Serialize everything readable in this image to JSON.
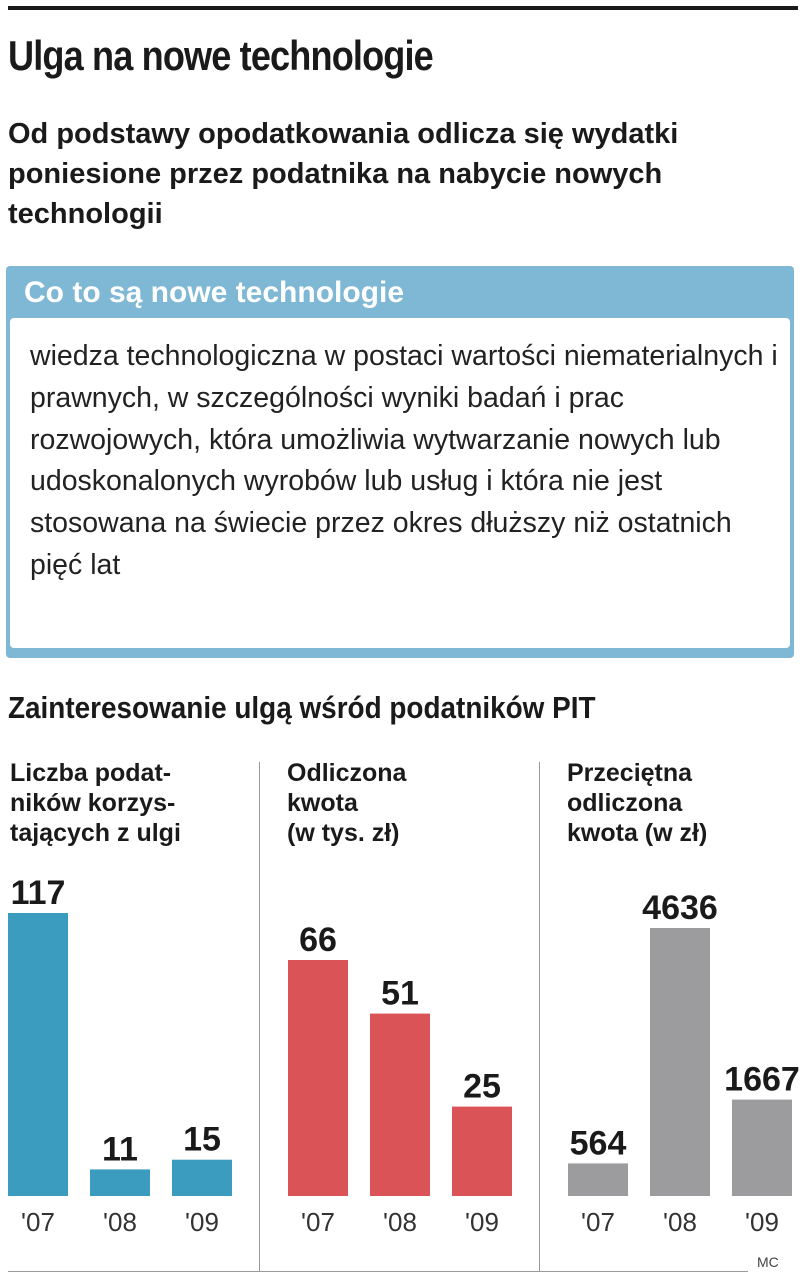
{
  "header": {
    "title": "Ulga na nowe technologie",
    "subtitle": "Od podstawy opodatkowania odlicza się wydatki poniesione przez podatnika na nabycie nowych technologii"
  },
  "info_box": {
    "title": "Co to są nowe technologie",
    "body": "wiedza technologiczna w postaci wartości niematerialnych i prawnych, w szczególności wyniki badań i prac rozwojowych, która umożliwia wytwarzanie nowych lub udoskonalonych wyrobów lub usług i która nie jest stosowana na świecie przez okres dłuższy niż ostatnich pięć lat"
  },
  "section_title": "Zainteresowanie ulgą wśród podatników PIT",
  "credit": "MC",
  "colors": {
    "blue": "#3b9cbf",
    "red": "#d95357",
    "gray": "#9c9c9e",
    "box": "#7fb8d4"
  },
  "chart_data": [
    {
      "type": "bar",
      "title": "Liczba podatników korzystających z ulgi",
      "title_lines": [
        "Liczba podat-",
        "ników korzys-",
        "tających z ulgi"
      ],
      "categories": [
        "'07",
        "'08",
        "'09"
      ],
      "values": [
        117,
        11,
        15
      ],
      "color": "#3b9cbf"
    },
    {
      "type": "bar",
      "title": "Odliczona kwota (w tys. zł)",
      "title_lines": [
        "Odliczona",
        "kwota",
        "(w tys. zł)"
      ],
      "categories": [
        "'07",
        "'08",
        "'09"
      ],
      "values": [
        66,
        51,
        25
      ],
      "color": "#d95357"
    },
    {
      "type": "bar",
      "title": "Przeciętna odliczona kwota (w zł)",
      "title_lines": [
        "Przeciętna",
        "odliczona",
        "kwota (w zł)"
      ],
      "categories": [
        "'07",
        "'08",
        "'09"
      ],
      "values": [
        564,
        4636,
        1667
      ],
      "color": "#9c9c9e"
    }
  ]
}
